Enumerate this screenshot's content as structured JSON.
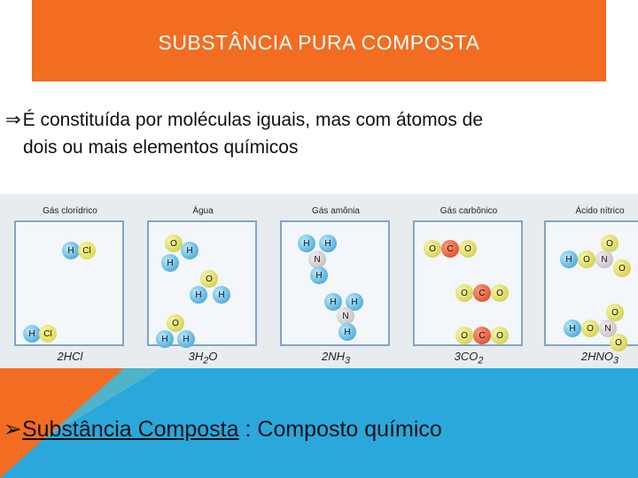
{
  "title": "SUBSTÂNCIA PURA COMPOSTA",
  "bullet1": {
    "arrow": "⇒",
    "line1": "É constituída por moléculas iguais, mas com átomos de",
    "line2": "dois ou mais elementos químicos"
  },
  "figure": {
    "panels": [
      {
        "label": "Gás clorídrico",
        "formula": "2HCl"
      },
      {
        "label": "Água",
        "formula_main": "3H",
        "formula_sub": "2",
        "formula_end": "O"
      },
      {
        "label": "Gás amônia",
        "formula_main": "2NH",
        "formula_sub": "3"
      },
      {
        "label": "Gás carbônico",
        "formula_main": "3CO",
        "formula_sub": "2"
      },
      {
        "label": "Ácido nítrico",
        "formula_main": "2HNO",
        "formula_sub": "3"
      }
    ],
    "atoms": {
      "H": "H",
      "Cl": "Cl",
      "O": "O",
      "N": "N",
      "C": "C"
    }
  },
  "bullet2": {
    "arrow": "➢",
    "link_text": "Substância Composta",
    "rest": " : Composto químico"
  },
  "colors": {
    "title_bg": "#f26d21",
    "accent_blue": "#2aa8dc"
  }
}
